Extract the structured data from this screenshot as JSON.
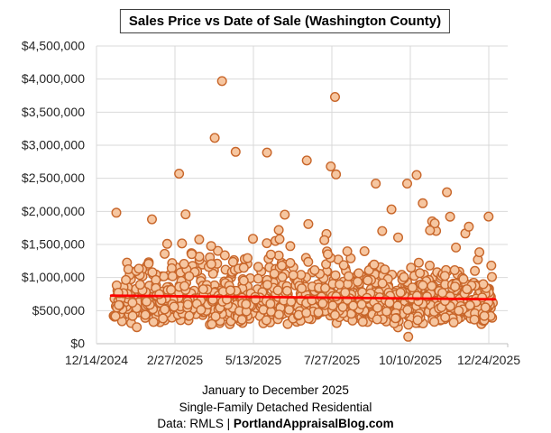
{
  "title": "Sales Price vs Date of Sale (Washington County)",
  "captions": {
    "line1": "January to December 2025",
    "line2": "Single-Family Detached Residential",
    "source_prefix": "Data: RMLS | ",
    "source_bold": "PortlandAppraisalBlog.com"
  },
  "colors": {
    "marker_fill": "#F6C6A0",
    "marker_stroke": "#C8662A",
    "trend_line": "#FF0000",
    "gridline": "#D9D9D9",
    "axis_line": "#BFBFBF",
    "tick_text": "#262626",
    "title_border": "#404040"
  },
  "chart_data": {
    "type": "scatter",
    "title": "Sales Price vs Date of Sale (Washington County)",
    "xlabel": "",
    "ylabel": "",
    "grid": true,
    "legend": "none",
    "x_axis": {
      "kind": "date",
      "origin_date": "2024-12-14",
      "tick_interval_days": 75,
      "tick_labels": [
        "12/14/2024",
        "2/27/2025",
        "5/13/2025",
        "7/27/2025",
        "10/10/2025",
        "12/24/2025"
      ]
    },
    "y_axis": {
      "min": 0,
      "max": 4500000,
      "tick_step": 500000,
      "tick_labels": [
        "$0",
        "$500,000",
        "$1,000,000",
        "$1,500,000",
        "$2,000,000",
        "$2,500,000",
        "$3,000,000",
        "$3,500,000",
        "$4,000,000",
        "$4,500,000"
      ]
    },
    "trend_line": {
      "color": "#FF0000",
      "start": {
        "date": "2024-12-28",
        "price": 727000
      },
      "end": {
        "date": "2025-12-30",
        "price": 672000
      }
    },
    "cloud_summary": {
      "count": 1250,
      "date_range": [
        "2024-12-30",
        "2025-12-28"
      ],
      "typical_price_range": [
        300000,
        1100000
      ],
      "median_price": 635000,
      "distribution": "lognormal, sigma 0.32, slight downward drift through year",
      "luxury_fraction": 0.055,
      "seed": 42
    },
    "outliers": [
      {
        "date": "2025-01-02",
        "price": 1980000
      },
      {
        "date": "2025-02-05",
        "price": 1880000
      },
      {
        "date": "2025-03-03",
        "price": 2570000
      },
      {
        "date": "2025-04-06",
        "price": 3110000
      },
      {
        "date": "2025-04-13",
        "price": 3970000
      },
      {
        "date": "2025-04-26",
        "price": 2900000
      },
      {
        "date": "2025-05-26",
        "price": 2890000
      },
      {
        "date": "2025-06-12",
        "price": 1950000
      },
      {
        "date": "2025-07-03",
        "price": 2770000
      },
      {
        "date": "2025-07-26",
        "price": 2680000
      },
      {
        "date": "2025-07-30",
        "price": 3730000
      },
      {
        "date": "2025-07-31",
        "price": 2560000
      },
      {
        "date": "2025-09-07",
        "price": 2420000
      },
      {
        "date": "2025-09-22",
        "price": 2030000
      },
      {
        "date": "2025-10-07",
        "price": 2420000
      },
      {
        "date": "2025-10-08",
        "price": 105000
      },
      {
        "date": "2025-10-16",
        "price": 2550000
      },
      {
        "date": "2025-11-14",
        "price": 2290000
      },
      {
        "date": "2025-11-17",
        "price": 1920000
      }
    ]
  }
}
